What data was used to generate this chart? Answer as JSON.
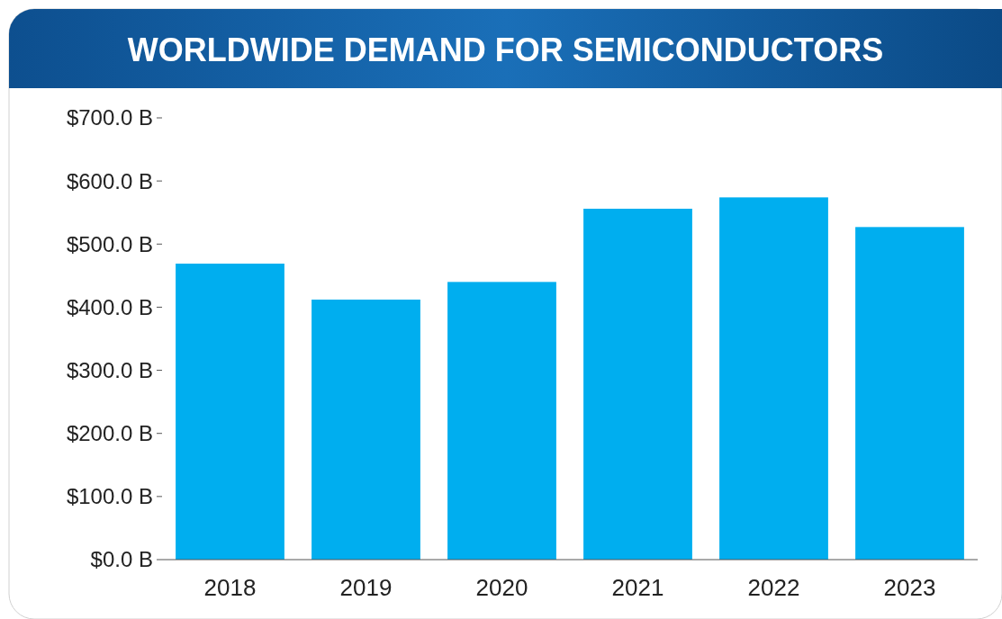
{
  "chart_data": {
    "type": "bar",
    "title": "WORLDWIDE DEMAND FOR SEMICONDUCTORS",
    "categories": [
      "2018",
      "2019",
      "2020",
      "2021",
      "2022",
      "2023"
    ],
    "values": [
      469,
      412,
      440,
      556,
      574,
      527
    ],
    "color": "#00aeef",
    "ylim": [
      0,
      700
    ],
    "yticks": [
      {
        "value": 0,
        "label": "$0.0 B"
      },
      {
        "value": 100,
        "label": "$100.0 B"
      },
      {
        "value": 200,
        "label": "$200.0 B"
      },
      {
        "value": 300,
        "label": "$300.0 B"
      },
      {
        "value": 400,
        "label": "$400.0 B"
      },
      {
        "value": 500,
        "label": "$500.0 B"
      },
      {
        "value": 600,
        "label": "$600.0 B"
      },
      {
        "value": 700,
        "label": "$700.0 B"
      }
    ],
    "grid": false
  }
}
